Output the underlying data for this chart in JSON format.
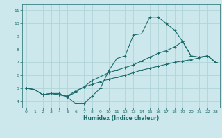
{
  "title": "",
  "xlabel": "Humidex (Indice chaleur)",
  "bg_color": "#cce8ec",
  "grid_color": "#b0d4d8",
  "line_color": "#1a6b6b",
  "xlim": [
    -0.5,
    23.5
  ],
  "ylim": [
    3.5,
    11.5
  ],
  "xticks": [
    0,
    1,
    2,
    3,
    4,
    5,
    6,
    7,
    8,
    9,
    10,
    11,
    12,
    13,
    14,
    15,
    16,
    17,
    18,
    19,
    20,
    21,
    22,
    23
  ],
  "yticks": [
    4,
    5,
    6,
    7,
    8,
    9,
    10,
    11
  ],
  "line1_x": [
    0,
    1,
    2,
    3,
    4,
    5,
    6,
    7,
    8,
    9,
    10,
    11,
    12,
    13,
    14,
    15,
    16,
    17,
    18,
    19,
    20,
    21,
    22,
    23
  ],
  "line1_y": [
    5.0,
    4.9,
    4.5,
    4.6,
    4.6,
    4.3,
    3.8,
    3.8,
    4.4,
    5.0,
    6.35,
    7.3,
    7.5,
    9.1,
    9.2,
    10.5,
    10.5,
    10.0,
    9.5,
    8.6,
    7.5,
    7.4,
    7.5,
    7.0
  ],
  "line2_x": [
    0,
    1,
    2,
    3,
    4,
    5,
    6,
    7,
    8,
    9,
    10,
    11,
    12,
    13,
    14,
    15,
    16,
    17,
    18,
    19,
    20,
    21,
    22,
    23
  ],
  "line2_y": [
    5.0,
    4.9,
    4.5,
    4.6,
    4.5,
    4.35,
    4.7,
    5.1,
    5.6,
    5.9,
    6.2,
    6.4,
    6.6,
    6.8,
    7.1,
    7.4,
    7.7,
    7.9,
    8.2,
    8.6,
    7.5,
    7.4,
    7.5,
    7.0
  ],
  "line3_x": [
    0,
    1,
    2,
    3,
    4,
    5,
    6,
    7,
    8,
    9,
    10,
    11,
    12,
    13,
    14,
    15,
    16,
    17,
    18,
    19,
    20,
    21,
    22,
    23
  ],
  "line3_y": [
    5.0,
    4.9,
    4.5,
    4.6,
    4.5,
    4.4,
    4.8,
    5.1,
    5.3,
    5.5,
    5.7,
    5.85,
    6.0,
    6.2,
    6.4,
    6.55,
    6.7,
    6.85,
    7.0,
    7.1,
    7.2,
    7.35,
    7.5,
    7.0
  ]
}
